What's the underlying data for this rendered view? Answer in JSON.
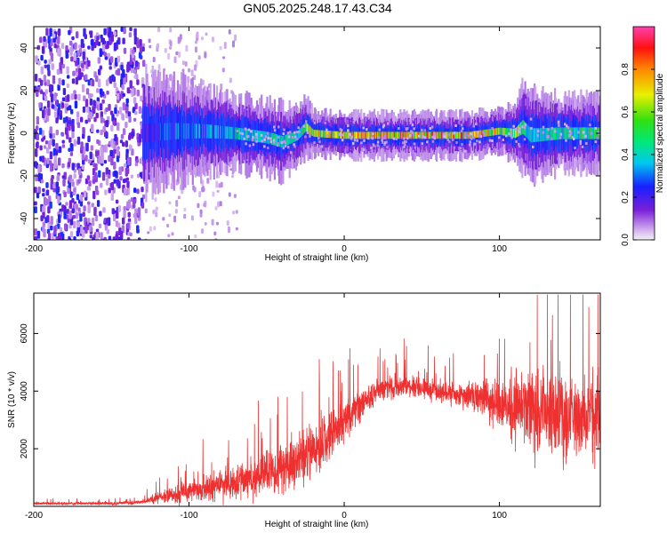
{
  "title": "GN05.2025.248.17.43.C34",
  "chart_data": [
    {
      "type": "heatmap",
      "name": "spectrogram",
      "xlabel": "Height of straight line (km)",
      "ylabel": "Frequency (Hz)",
      "xlim": [
        -200,
        165
      ],
      "ylim": [
        -50,
        50
      ],
      "xticks": [
        -200,
        -100,
        0,
        100
      ],
      "yticks": [
        -40,
        -20,
        0,
        20,
        40
      ],
      "colorbar": {
        "label": "Normalized spectral amplitude",
        "range": [
          0,
          1
        ],
        "ticks": [
          0.0,
          0.2,
          0.4,
          0.6,
          0.8
        ],
        "tick_labels": [
          "0.0",
          "0.2",
          "0.4",
          "0.6",
          "0.8"
        ]
      },
      "noise_region_x": [
        -200,
        -130
      ],
      "scatter_region_x": [
        -130,
        -70
      ],
      "ridge": {
        "x": [
          -130,
          -110,
          -90,
          -70,
          -50,
          -40,
          -30,
          -25,
          -20,
          0,
          20,
          40,
          60,
          80,
          100,
          110,
          115,
          120,
          140,
          165
        ],
        "center_hz": [
          0,
          1,
          1,
          0,
          -2,
          -4,
          -1,
          3,
          0,
          -1,
          -1,
          -1,
          -1,
          -1,
          1,
          0,
          3,
          -1,
          0,
          0
        ],
        "width_hz": [
          8,
          7,
          6,
          5,
          5,
          5,
          4,
          4,
          3,
          3,
          3,
          3,
          3,
          3,
          3,
          4,
          6,
          6,
          5,
          5
        ],
        "amplitude": [
          0.25,
          0.35,
          0.4,
          0.45,
          0.5,
          0.5,
          0.6,
          0.7,
          0.85,
          0.95,
          0.95,
          0.95,
          0.95,
          0.9,
          0.85,
          0.75,
          0.6,
          0.5,
          0.55,
          0.6
        ]
      }
    },
    {
      "type": "line",
      "name": "snr",
      "xlabel": "Height of straight line (km)",
      "ylabel": "SNR (10 * v/v)",
      "xlim": [
        -200,
        165
      ],
      "ylim": [
        0,
        7400
      ],
      "xticks": [
        -200,
        -100,
        0,
        100
      ],
      "yticks": [
        2000,
        4000,
        6000
      ],
      "color": "#ee3030",
      "envelope": {
        "x": [
          -200,
          -150,
          -130,
          -120,
          -100,
          -80,
          -60,
          -40,
          -20,
          0,
          20,
          40,
          60,
          80,
          100,
          115,
          125,
          140,
          165
        ],
        "mean": [
          100,
          100,
          150,
          300,
          500,
          700,
          1000,
          1400,
          2000,
          2900,
          4000,
          4200,
          4000,
          3800,
          3600,
          3400,
          3300,
          3200,
          3200
        ],
        "noise": [
          100,
          100,
          150,
          400,
          700,
          1000,
          1300,
          1700,
          2000,
          1300,
          900,
          700,
          700,
          900,
          1700,
          2700,
          3200,
          3000,
          2700
        ]
      }
    }
  ]
}
